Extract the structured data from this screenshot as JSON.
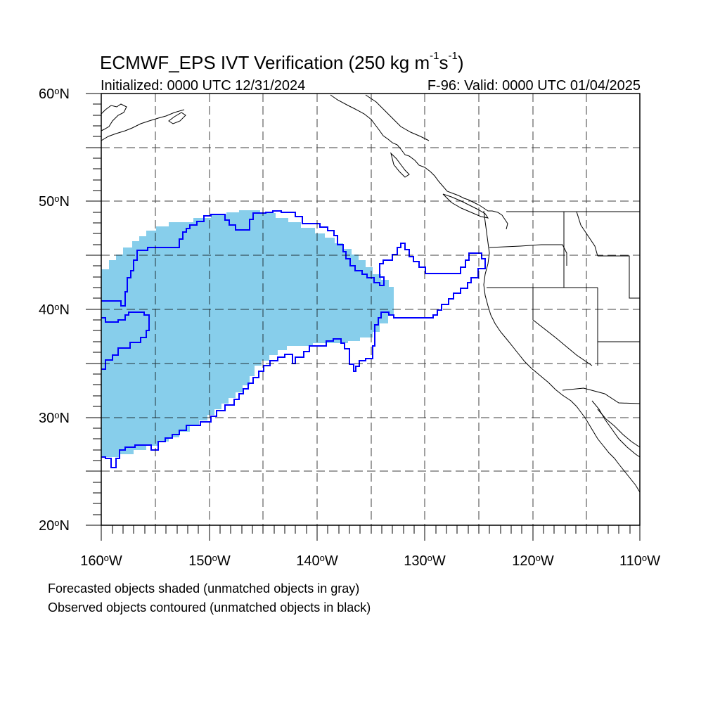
{
  "title_main": "ECMWF_EPS IVT Verification (250 kg m",
  "title_sup1": "-1",
  "title_mid": "s",
  "title_sup2": "-1",
  "title_end": ")",
  "initialized": "Initialized: 0000 UTC 12/31/2024",
  "valid": "F-96: Valid: 0000 UTC 01/04/2025",
  "lat_labels": [
    {
      "value": "60",
      "suffix": "N"
    },
    {
      "value": "50",
      "suffix": "N"
    },
    {
      "value": "40",
      "suffix": "N"
    },
    {
      "value": "30",
      "suffix": "N"
    },
    {
      "value": "20",
      "suffix": "N"
    }
  ],
  "lon_labels": [
    {
      "value": "160",
      "suffix": "W"
    },
    {
      "value": "150",
      "suffix": "W"
    },
    {
      "value": "140",
      "suffix": "W"
    },
    {
      "value": "130",
      "suffix": "W"
    },
    {
      "value": "120",
      "suffix": "W"
    },
    {
      "value": "110",
      "suffix": "W"
    }
  ],
  "notes": {
    "forecast": "Forecasted objects shaded (unmatched objects in gray)",
    "observed": "Observed objects contoured (unmatched objects in black)"
  },
  "map_extent": {
    "lon_min": -160,
    "lon_max": -110,
    "lat_min": 20,
    "lat_max": 60
  },
  "colors": {
    "forecast_fill": "#87ceeb",
    "observed_contour": "#0000ff",
    "coastline": "#000000",
    "grid": "#000000"
  },
  "grid": {
    "style": "dashed",
    "lon_step": 5,
    "lat_step": 5
  }
}
